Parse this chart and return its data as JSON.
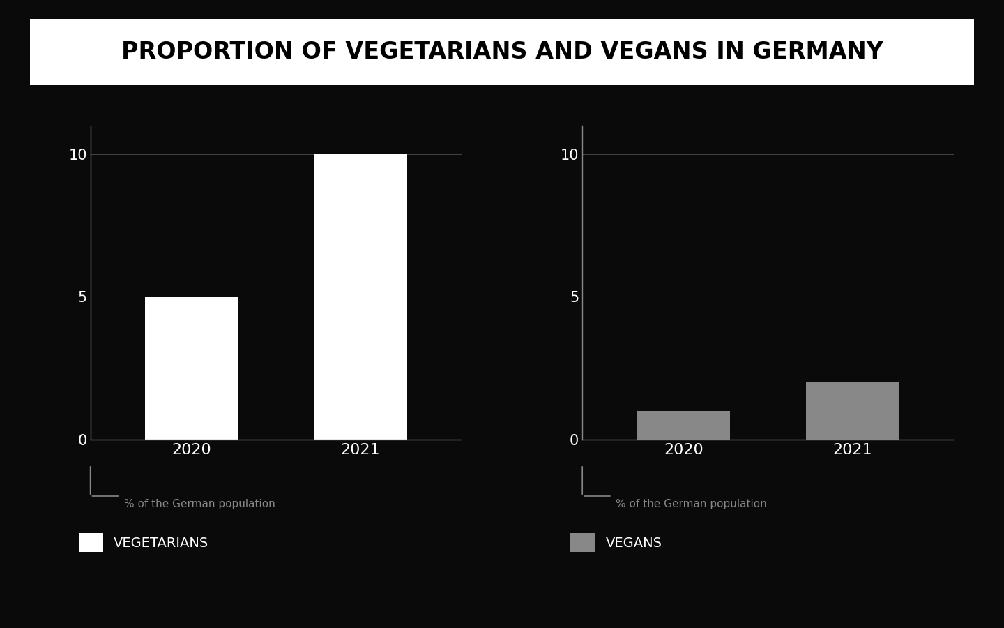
{
  "title": "PROPORTION OF VEGETARIANS AND VEGANS IN GERMANY",
  "title_bg_color": "#ffffff",
  "bg_color": "#0a0a0a",
  "chart_bg_color": "#0a0a0a",
  "vegetarians": {
    "years": [
      "2020",
      "2021"
    ],
    "values": [
      5,
      10
    ],
    "bar_color": "#ffffff",
    "label": "VEGETARIANS",
    "ylabel": "% of the German population",
    "ylim": [
      0,
      11
    ],
    "yticks": [
      0,
      5,
      10
    ]
  },
  "vegans": {
    "years": [
      "2020",
      "2021"
    ],
    "values": [
      1,
      2
    ],
    "bar_color": "#888888",
    "label": "VEGANS",
    "ylabel": "% of the German population",
    "ylim": [
      0,
      11
    ],
    "yticks": [
      0,
      5,
      10
    ]
  },
  "axis_color": "#888888",
  "tick_color": "#ffffff",
  "grid_color": "#444444",
  "title_fontsize": 24,
  "tick_fontsize": 15,
  "label_fontsize": 11,
  "legend_fontsize": 14,
  "year_fontsize": 16
}
